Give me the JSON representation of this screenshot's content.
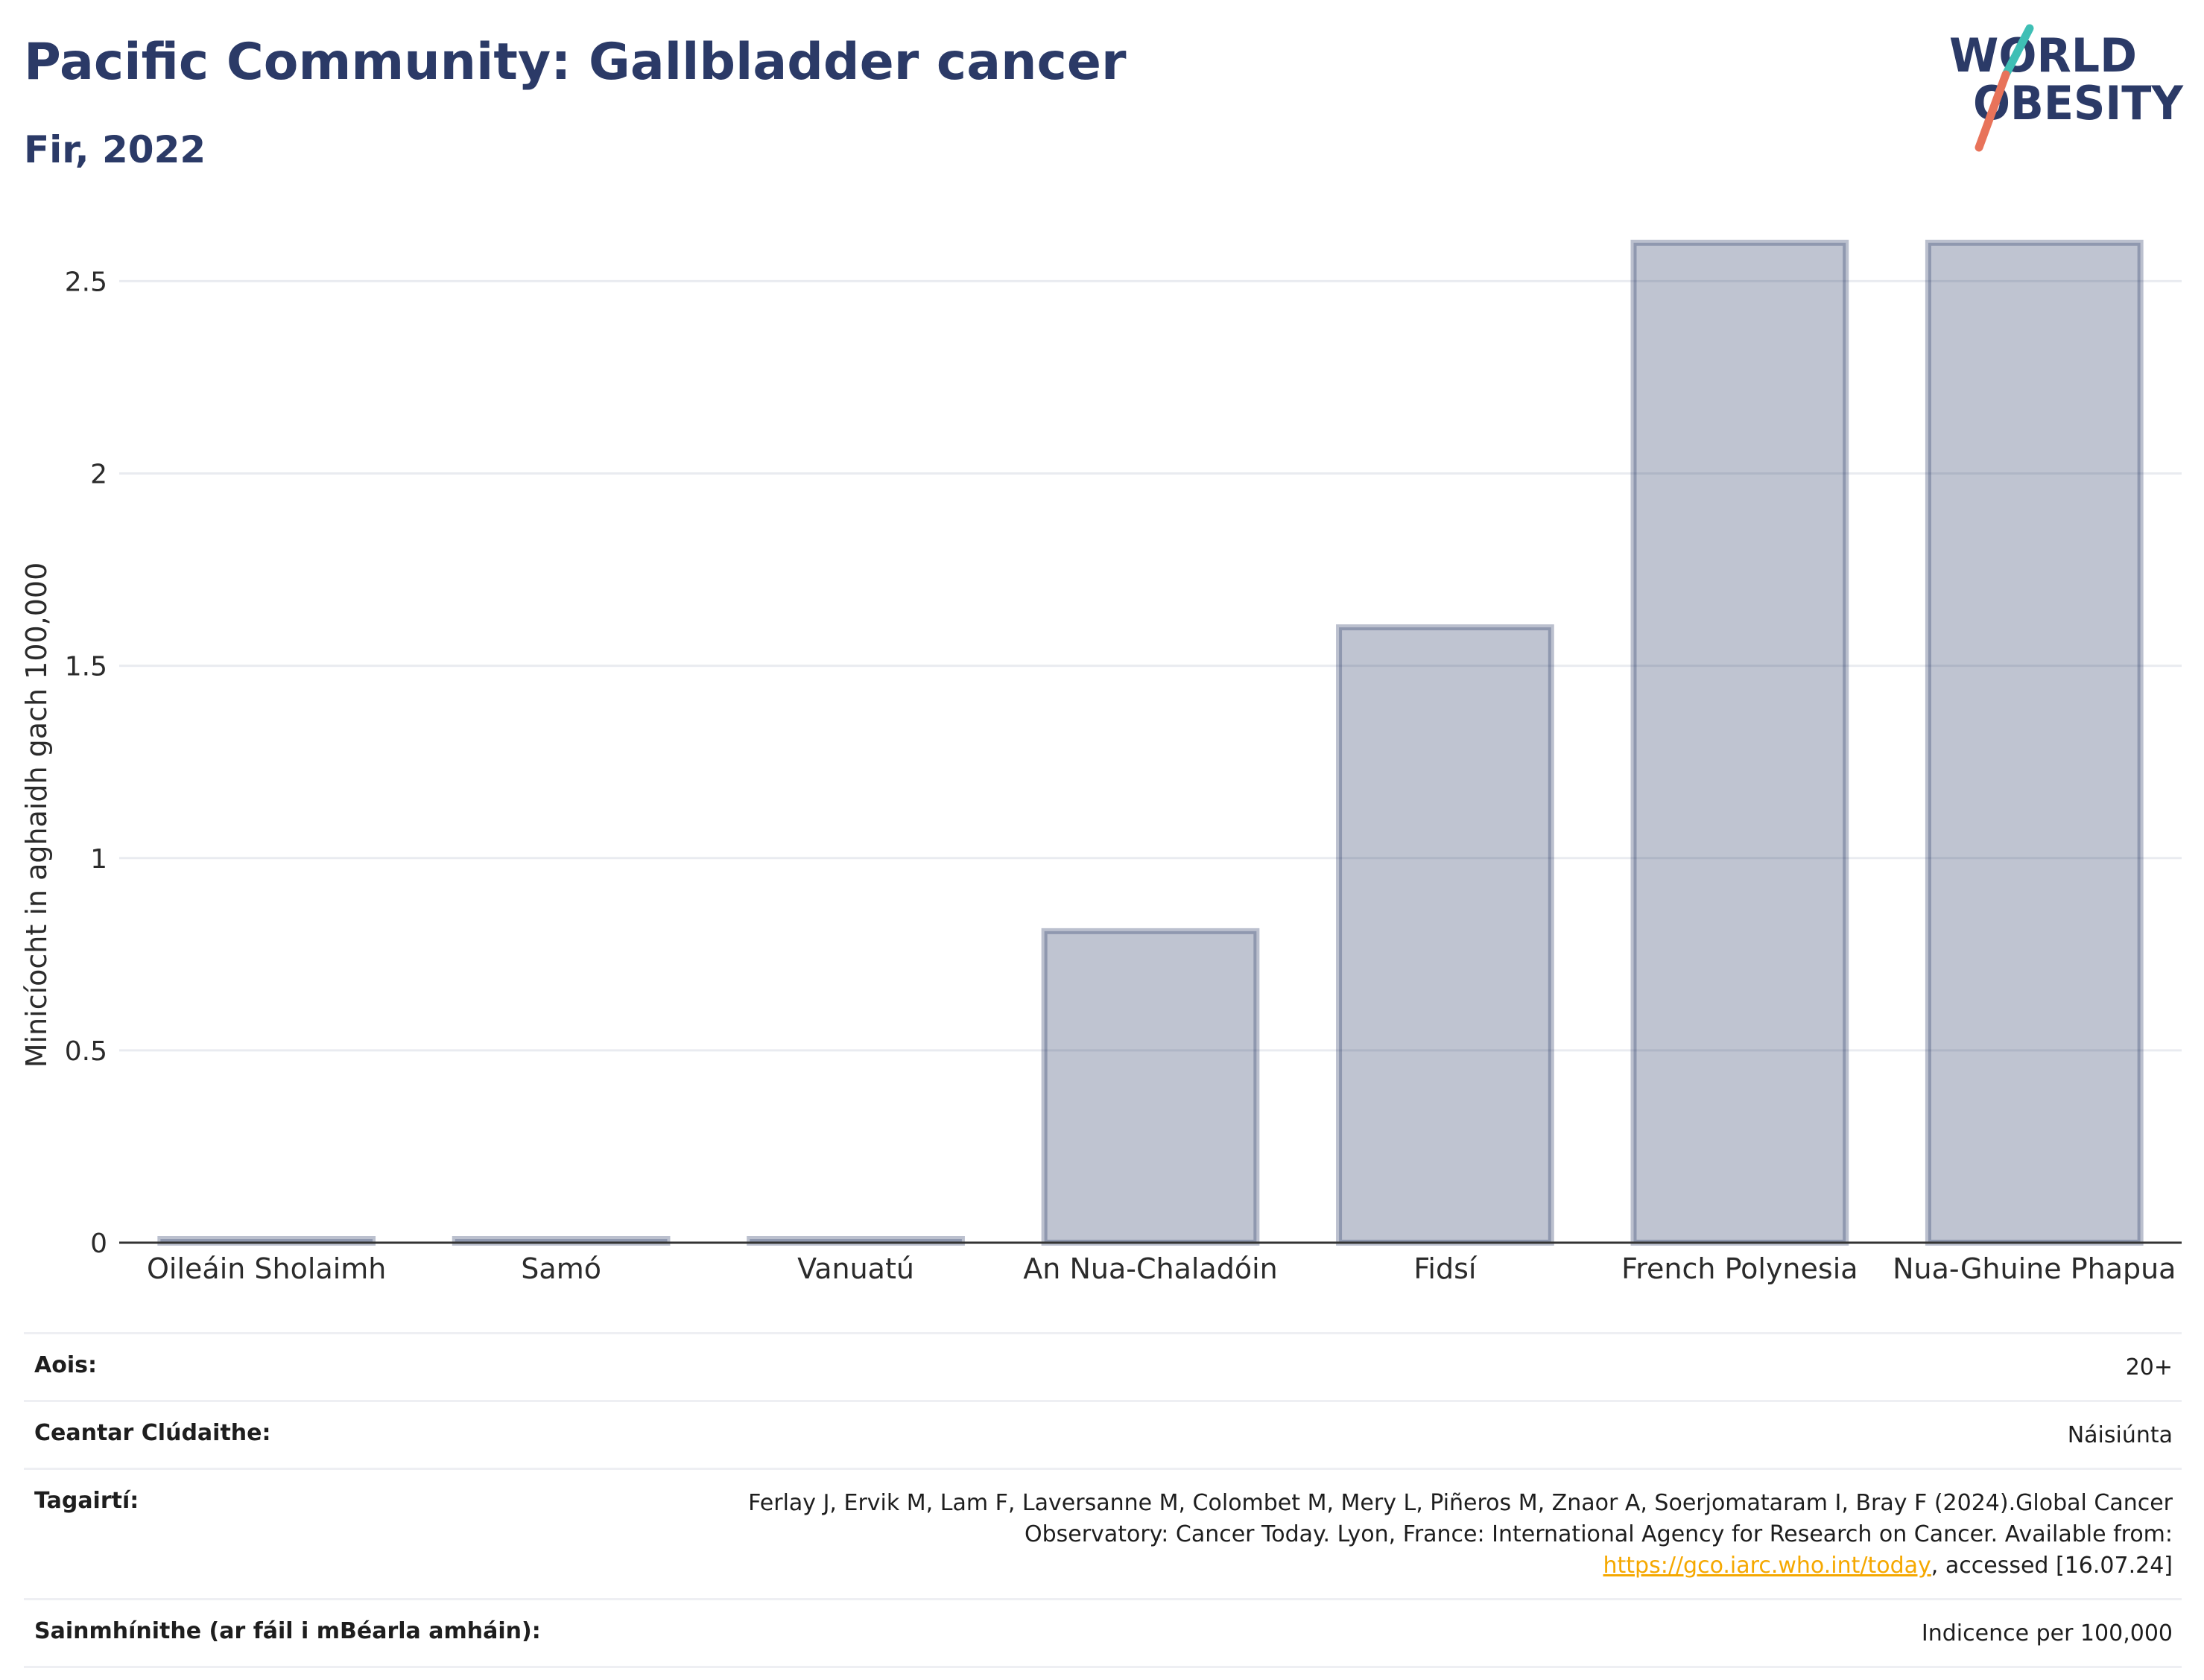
{
  "header": {
    "title": "Pacific Community: Gallbladder cancer",
    "subtitle": "Fir, 2022"
  },
  "logo": {
    "line1": "WORLD",
    "line2": "OBESITY"
  },
  "chart_data": {
    "type": "bar",
    "categories": [
      "Oileáin Sholaimh",
      "Samó",
      "Vanuatú",
      "An Nua-Chaladóin",
      "Fidsí",
      "French Polynesia",
      "Nua-Ghuine Phapua"
    ],
    "values": [
      0,
      0,
      0,
      0.81,
      1.6,
      2.6,
      2.6
    ],
    "ylabel": "Minicíocht in aghaidh gach 100,000",
    "xlabel": "",
    "ylim": [
      0,
      2.65
    ],
    "yticks": [
      0,
      0.5,
      1,
      1.5,
      2,
      2.5
    ],
    "ytick_labels": [
      "0",
      "0.5",
      "1",
      "1.5",
      "2",
      "2.5"
    ],
    "grid": true,
    "bar_color": "#2b3a67"
  },
  "info": {
    "age_label": "Aois:",
    "age_value": "20+",
    "coverage_label": "Ceantar Clúdaithe:",
    "coverage_value": "Náisiúnta",
    "references_label": "Tagairtí:",
    "references_text_1": "Ferlay J, Ervik M, Lam F, Laversanne M, Colombet M, Mery L, Piñeros M, Znaor A, Soerjomataram I, Bray F (2024).Global Cancer Observatory: Cancer Today. Lyon, France: International Agency for Research on Cancer. Available from: ",
    "references_link": "https://gco.iarc.who.int/today",
    "references_text_2": ", accessed [16.07.24]",
    "definitions_label": "Sainmhínithe (ar fáil i mBéarla amháin):",
    "definitions_value": "Indicence per 100,000"
  },
  "colors": {
    "brand_navy": "#2b3a67",
    "logo_teal": "#3fbfb5",
    "logo_coral": "#e8735a",
    "link": "#f5a800"
  }
}
